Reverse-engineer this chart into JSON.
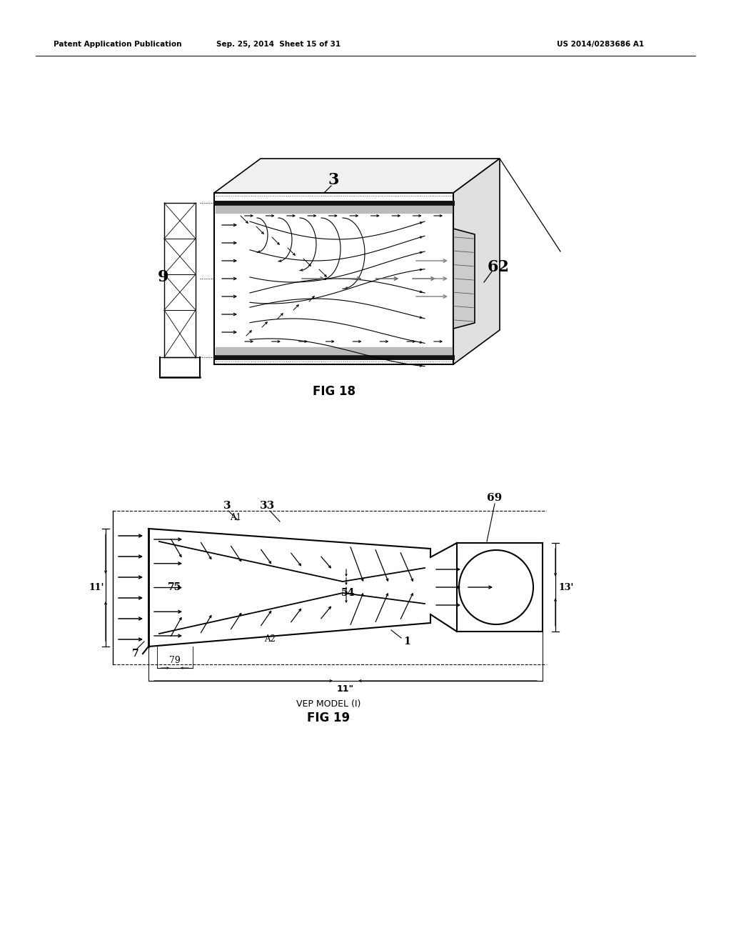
{
  "bg_color": "#ffffff",
  "lc": "#000000",
  "header_left": "Patent Application Publication",
  "header_mid": "Sep. 25, 2014  Sheet 15 of 31",
  "header_right": "US 2014/0283686 A1",
  "fig18_caption": "FIG 18",
  "fig19_caption": "FIG 19",
  "fig19_sub": "VEP MODEL (I)"
}
